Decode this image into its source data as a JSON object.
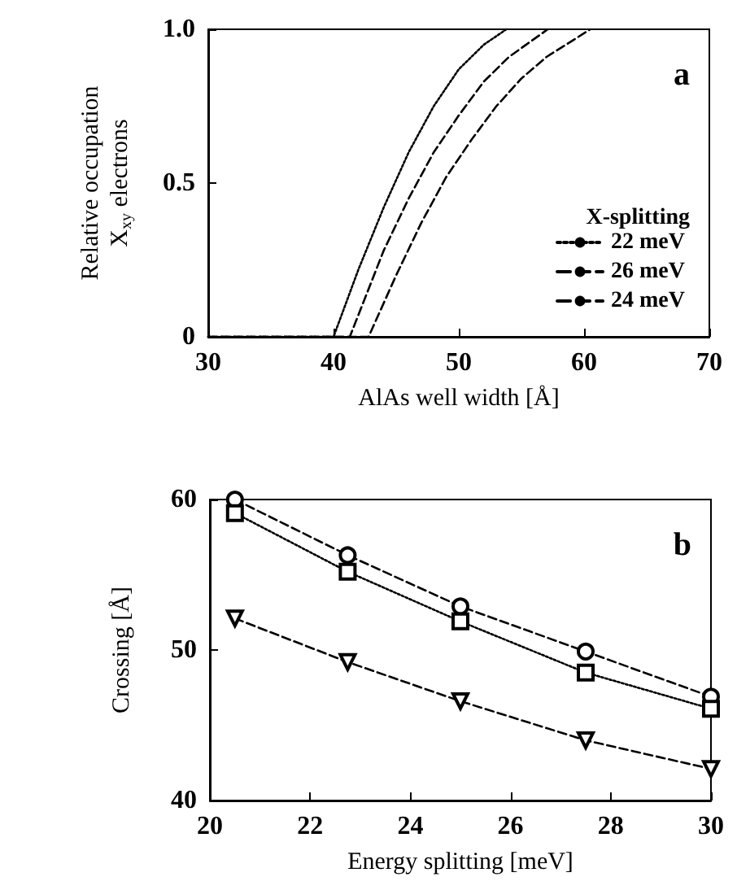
{
  "chart_data": [
    {
      "type": "line",
      "xlabel": "AlAs well width [Å]",
      "ylabel": "Relative occupation\nX$_{xy}$ electrons",
      "xlim": [
        30,
        70
      ],
      "xticks": [
        30,
        40,
        50,
        60,
        70
      ],
      "ylim": [
        0,
        1
      ],
      "yticks": [
        0,
        0.5,
        {
          "value": 1,
          "label": "1.0"
        }
      ],
      "grid": false,
      "legend": "bottom right",
      "legend_title": "X-splitting",
      "marker": "none",
      "annotations": [
        "a"
      ],
      "series": [
        {
          "name": "22 meV",
          "color": "#000000",
          "line_style": "dotted",
          "x": [
            30,
            40,
            42,
            44,
            46,
            48,
            50,
            52,
            53.8
          ],
          "values": [
            0,
            0,
            0.22,
            0.42,
            0.6,
            0.75,
            0.87,
            0.95,
            1
          ]
        },
        {
          "name": "26 meV",
          "color": "#000000",
          "line_style": "dashed",
          "x": [
            30,
            41.3,
            44,
            46,
            48,
            50,
            52,
            54,
            57.1
          ],
          "values": [
            0,
            0,
            0.28,
            0.45,
            0.6,
            0.72,
            0.83,
            0.91,
            1
          ]
        },
        {
          "name": "24 meV",
          "color": "#000000",
          "line_style": "dashed",
          "x": [
            30,
            42.8,
            45,
            47,
            49,
            51,
            53,
            55,
            57,
            60.5
          ],
          "values": [
            0,
            0,
            0.2,
            0.37,
            0.52,
            0.64,
            0.75,
            0.84,
            0.91,
            1
          ]
        }
      ]
    },
    {
      "type": "line",
      "xlabel": "Energy splitting [meV]",
      "ylabel": "Crossing [Å]",
      "xlim": [
        20,
        30
      ],
      "xticks": [
        20,
        22,
        24,
        26,
        28,
        30
      ],
      "ylim": [
        40,
        60
      ],
      "yticks": [
        40,
        50,
        60
      ],
      "grid": false,
      "legend": false,
      "annotations": [
        "b"
      ],
      "series": [
        {
          "color": "#000000",
          "line_style": "dashed",
          "marker": "circle",
          "x": [
            20.5,
            22.75,
            25,
            27.5,
            30
          ],
          "values": [
            60,
            56.3,
            52.9,
            49.9,
            46.9
          ]
        },
        {
          "color": "#000000",
          "line_style": "dotted",
          "marker": "square",
          "x": [
            20.5,
            22.75,
            25,
            27.5,
            30
          ],
          "values": [
            59.1,
            55.2,
            51.9,
            48.5,
            46.1
          ]
        },
        {
          "color": "#000000",
          "line_style": "dashed",
          "marker": "triangle",
          "x": [
            20.5,
            22.75,
            25,
            27.5,
            30
          ],
          "values": [
            52.1,
            49.2,
            46.6,
            44.0,
            42.1
          ]
        }
      ]
    }
  ]
}
